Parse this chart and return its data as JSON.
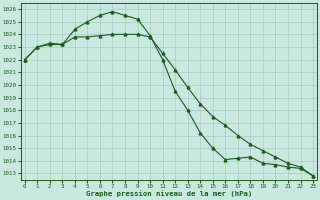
{
  "line1_x": [
    0,
    1,
    2,
    3,
    4,
    5,
    6,
    7,
    8,
    9,
    10,
    11,
    12,
    13,
    14,
    15,
    16,
    17,
    18,
    19,
    20,
    21,
    22,
    23
  ],
  "line1_y": [
    1022.0,
    1023.0,
    1023.3,
    1023.2,
    1024.4,
    1025.0,
    1025.5,
    1025.8,
    1025.5,
    1025.2,
    1023.9,
    1022.0,
    1019.5,
    1018.0,
    1016.2,
    1015.0,
    1014.1,
    1014.2,
    1014.3,
    1013.8,
    1013.7,
    1013.5,
    1013.4,
    1012.8
  ],
  "line2_x": [
    0,
    1,
    2,
    3,
    4,
    5,
    6,
    7,
    8,
    9,
    10,
    11,
    12,
    13,
    14,
    15,
    16,
    17,
    18,
    19,
    20,
    21,
    22,
    23
  ],
  "line2_y": [
    1022.0,
    1023.0,
    1023.2,
    1023.2,
    1023.8,
    1023.8,
    1023.9,
    1024.0,
    1024.0,
    1024.0,
    1023.8,
    1022.5,
    1021.2,
    1019.8,
    1018.5,
    1017.5,
    1016.8,
    1016.0,
    1015.3,
    1014.8,
    1014.3,
    1013.8,
    1013.5,
    1012.8
  ],
  "bg_color": "#c8e8e0",
  "grid_color": "#a8ccc0",
  "line_color": "#1a5c1a",
  "title": "Graphe pression niveau de la mer (hPa)",
  "ylim_min": 1012.5,
  "ylim_max": 1026.5,
  "xlim_min": -0.3,
  "xlim_max": 23.3,
  "yticks": [
    1013,
    1014,
    1015,
    1016,
    1017,
    1018,
    1019,
    1020,
    1021,
    1022,
    1023,
    1024,
    1025,
    1026
  ],
  "xticks": [
    0,
    1,
    2,
    3,
    4,
    5,
    6,
    7,
    8,
    9,
    10,
    11,
    12,
    13,
    14,
    15,
    16,
    17,
    18,
    19,
    20,
    21,
    22,
    23
  ]
}
